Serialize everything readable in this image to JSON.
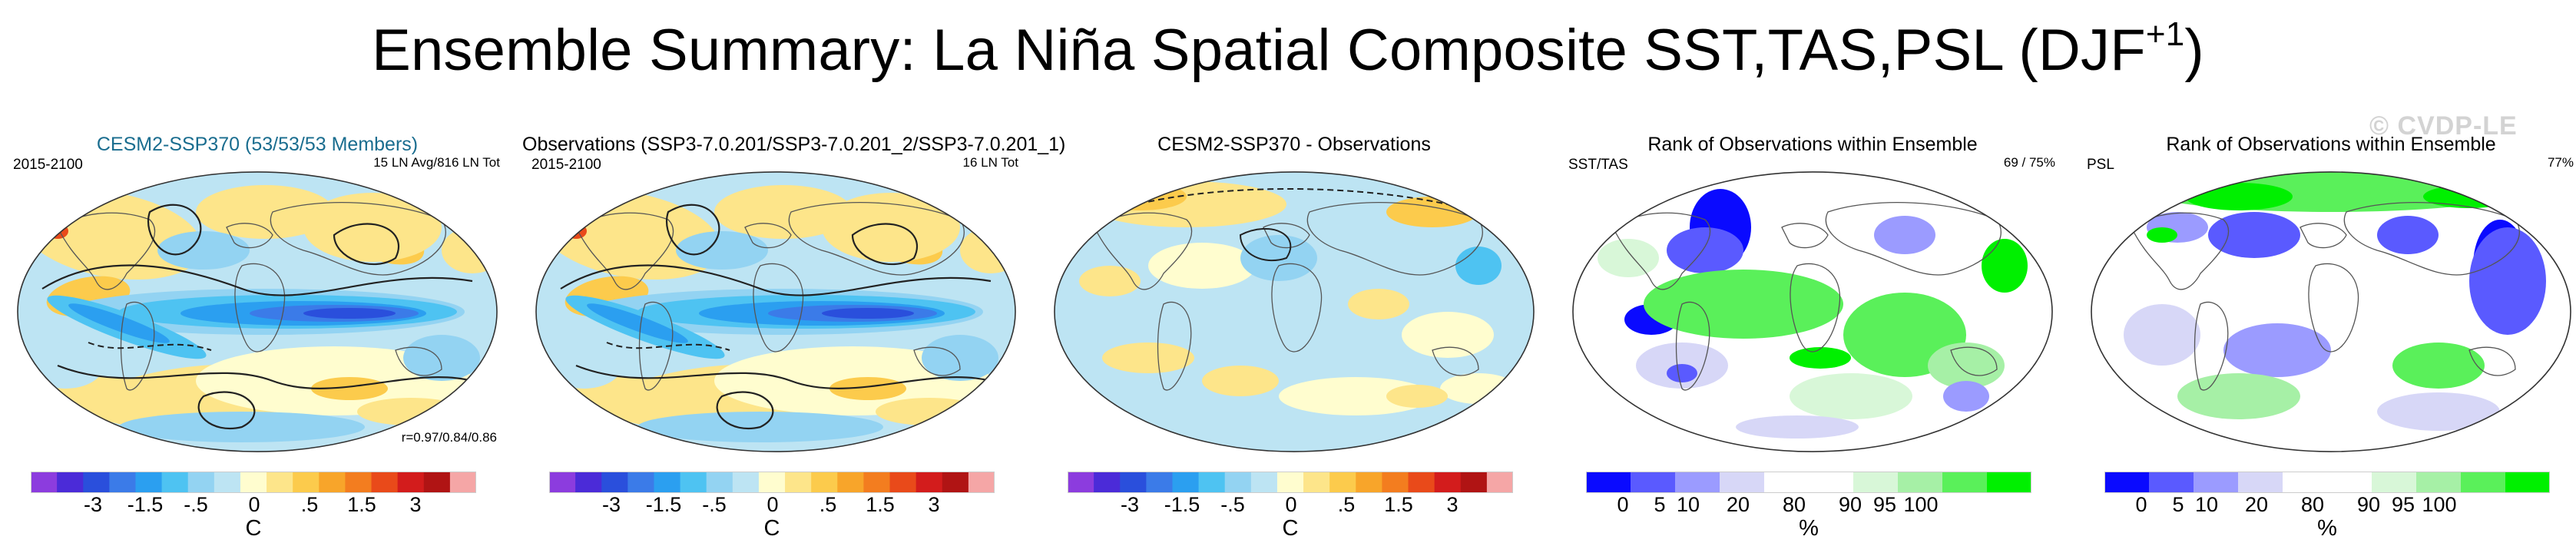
{
  "title": {
    "main": "Ensemble Summary: La Niña Spatial Composite SST,TAS,PSL (DJF",
    "sup": "+1",
    "close": ")"
  },
  "watermark": "© CVDP-LE",
  "temp_colors": [
    "#8c3cde",
    "#4b2bd8",
    "#2a4fdc",
    "#3b7be8",
    "#2b9ff0",
    "#4ec3f2",
    "#93d3f2",
    "#bde4f3",
    "#fffdcf",
    "#fde58a",
    "#fccb4c",
    "#f8a52a",
    "#f37d1f",
    "#e94a1a",
    "#d31c1c",
    "#b01414",
    "#f5a6a6"
  ],
  "rank_colors": [
    "#0a0aff",
    "#5a5aff",
    "#9b9bff",
    "#d7d7f7",
    "#ffffff",
    "#ffffff",
    "#d8f7d8",
    "#a6f0a6",
    "#5af05a",
    "#00f000"
  ],
  "panels": [
    {
      "title": "CESM2-SSP370 (53/53/53 Members)",
      "left_tag": "2015-2100",
      "right_tag": "15 LN Avg/816 LN Tot",
      "bottom_right": "r=0.97/0.84/0.86",
      "colorbar": "temp",
      "unit": "C"
    },
    {
      "title": "Observations (SSP3-7.0.201/SSP3-7.0.201_2/SSP3-7.0.201_1)",
      "left_tag": "2015-2100",
      "right_tag": "16 LN Tot",
      "bottom_right": "",
      "colorbar": "temp",
      "unit": "C"
    },
    {
      "title": "CESM2-SSP370 - Observations",
      "left_tag": "",
      "right_tag": "",
      "bottom_right": "",
      "colorbar": "temp",
      "unit": "C"
    },
    {
      "title": "Rank of Observations within Ensemble",
      "left_tag": "SST/TAS",
      "right_tag": "69 / 75%",
      "bottom_right": "",
      "colorbar": "rank",
      "unit": "%"
    },
    {
      "title": "Rank of Observations within Ensemble",
      "left_tag": "PSL",
      "right_tag": "77%",
      "bottom_right": "",
      "colorbar": "rank",
      "unit": "%"
    }
  ],
  "chart_data": [
    {
      "type": "heatmap",
      "title": "CESM2-SSP370 (53/53/53 Members)",
      "projection": "Robinson global map",
      "variables": [
        "SST",
        "TAS",
        "PSL contours"
      ],
      "period": "2015-2100",
      "annotation": "15 LN Avg/816 LN Tot",
      "pattern_correlation": "r=0.97/0.84/0.86",
      "colorbar_ticks": [
        "-3",
        "-1.5",
        "-.5",
        "0",
        ".5",
        "1.5",
        "3"
      ],
      "colorbar_unit": "C",
      "colorbar_levels": 17
    },
    {
      "type": "heatmap",
      "title": "Observations (SSP3-7.0.201/SSP3-7.0.201_2/SSP3-7.0.201_1)",
      "projection": "Robinson global map",
      "period": "2015-2100",
      "annotation": "16 LN Tot",
      "colorbar_ticks": [
        "-3",
        "-1.5",
        "-.5",
        "0",
        ".5",
        "1.5",
        "3"
      ],
      "colorbar_unit": "C",
      "colorbar_levels": 17
    },
    {
      "type": "heatmap",
      "title": "CESM2-SSP370 - Observations",
      "projection": "Robinson global map (polar-centered view)",
      "colorbar_ticks": [
        "-3",
        "-1.5",
        "-.5",
        "0",
        ".5",
        "1.5",
        "3"
      ],
      "colorbar_unit": "C",
      "colorbar_levels": 17
    },
    {
      "type": "heatmap",
      "title": "Rank of Observations within Ensemble",
      "label": "SST/TAS",
      "annotation": "69 / 75%",
      "colorbar_ticks": [
        "0",
        "5",
        "10",
        "20",
        "80",
        "90",
        "95",
        "100"
      ],
      "colorbar_unit": "%"
    },
    {
      "type": "heatmap",
      "title": "Rank of Observations within Ensemble",
      "label": "PSL",
      "annotation": "77%",
      "colorbar_ticks": [
        "0",
        "5",
        "10",
        "20",
        "80",
        "90",
        "95",
        "100"
      ],
      "colorbar_unit": "%"
    }
  ]
}
